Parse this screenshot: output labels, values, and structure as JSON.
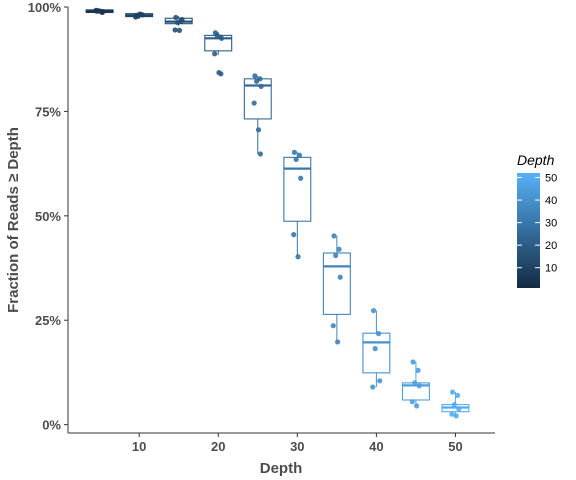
{
  "chart_data": {
    "type": "boxplot",
    "title": "",
    "xlabel": "Depth",
    "ylabel": "Fraction of Reads ≥ Depth",
    "xlim": [
      1,
      55
    ],
    "ylim": [
      -0.02,
      1.0
    ],
    "x_ticks": [
      10,
      20,
      30,
      40,
      50
    ],
    "x_tick_labels": [
      "10",
      "20",
      "30",
      "40",
      "50"
    ],
    "y_ticks": [
      0,
      0.25,
      0.5,
      0.75,
      1.0
    ],
    "y_tick_labels": [
      "0%",
      "25%",
      "50%",
      "75%",
      "100%"
    ],
    "grid": false,
    "legend": {
      "title": "Depth",
      "type": "colorbar",
      "position": "right",
      "range": [
        1,
        52
      ],
      "ticks": [
        10,
        20,
        30,
        40,
        50
      ],
      "tick_labels": [
        "10",
        "20",
        "30",
        "40",
        "50"
      ],
      "color_low": "#132B43",
      "color_high": "#56B1F7"
    },
    "boxes": [
      {
        "depth": 5,
        "q1": 0.987,
        "median": 0.99,
        "q3": 0.993,
        "whisker_low": 0.985,
        "whisker_high": 0.995,
        "points": [
          0.99,
          0.988,
          0.991,
          0.989,
          0.992,
          0.99,
          0.987
        ]
      },
      {
        "depth": 10,
        "q1": 0.977,
        "median": 0.98,
        "q3": 0.984,
        "whisker_low": 0.972,
        "whisker_high": 0.986,
        "points": [
          0.98,
          0.982,
          0.978,
          0.981,
          0.976,
          0.983
        ]
      },
      {
        "depth": 15,
        "q1": 0.96,
        "median": 0.965,
        "q3": 0.973,
        "whisker_low": 0.955,
        "whisker_high": 0.978,
        "points": [
          0.975,
          0.968,
          0.963,
          0.97,
          0.945,
          0.944,
          0.966
        ]
      },
      {
        "depth": 20,
        "q1": 0.895,
        "median": 0.925,
        "q3": 0.932,
        "whisker_low": 0.885,
        "whisker_high": 0.94,
        "points": [
          0.938,
          0.928,
          0.932,
          0.925,
          0.888,
          0.843,
          0.84
        ]
      },
      {
        "depth": 25,
        "q1": 0.732,
        "median": 0.812,
        "q3": 0.828,
        "whisker_low": 0.648,
        "whisker_high": 0.835,
        "points": [
          0.835,
          0.828,
          0.822,
          0.81,
          0.77,
          0.706,
          0.648
        ]
      },
      {
        "depth": 30,
        "q1": 0.487,
        "median": 0.613,
        "q3": 0.64,
        "whisker_low": 0.402,
        "whisker_high": 0.652,
        "points": [
          0.652,
          0.645,
          0.635,
          0.59,
          0.455,
          0.402
        ]
      },
      {
        "depth": 35,
        "q1": 0.264,
        "median": 0.379,
        "q3": 0.411,
        "whisker_low": 0.198,
        "whisker_high": 0.452,
        "points": [
          0.452,
          0.42,
          0.405,
          0.353,
          0.237,
          0.198
        ]
      },
      {
        "depth": 40,
        "q1": 0.124,
        "median": 0.197,
        "q3": 0.219,
        "whisker_low": 0.09,
        "whisker_high": 0.273,
        "points": [
          0.273,
          0.218,
          0.182,
          0.105,
          0.09
        ]
      },
      {
        "depth": 45,
        "q1": 0.059,
        "median": 0.094,
        "q3": 0.1,
        "whisker_low": 0.043,
        "whisker_high": 0.15,
        "points": [
          0.15,
          0.13,
          0.1,
          0.093,
          0.055,
          0.045
        ]
      },
      {
        "depth": 50,
        "q1": 0.031,
        "median": 0.041,
        "q3": 0.048,
        "whisker_low": 0.021,
        "whisker_high": 0.078,
        "points": [
          0.078,
          0.07,
          0.048,
          0.038,
          0.025,
          0.021
        ]
      }
    ]
  }
}
